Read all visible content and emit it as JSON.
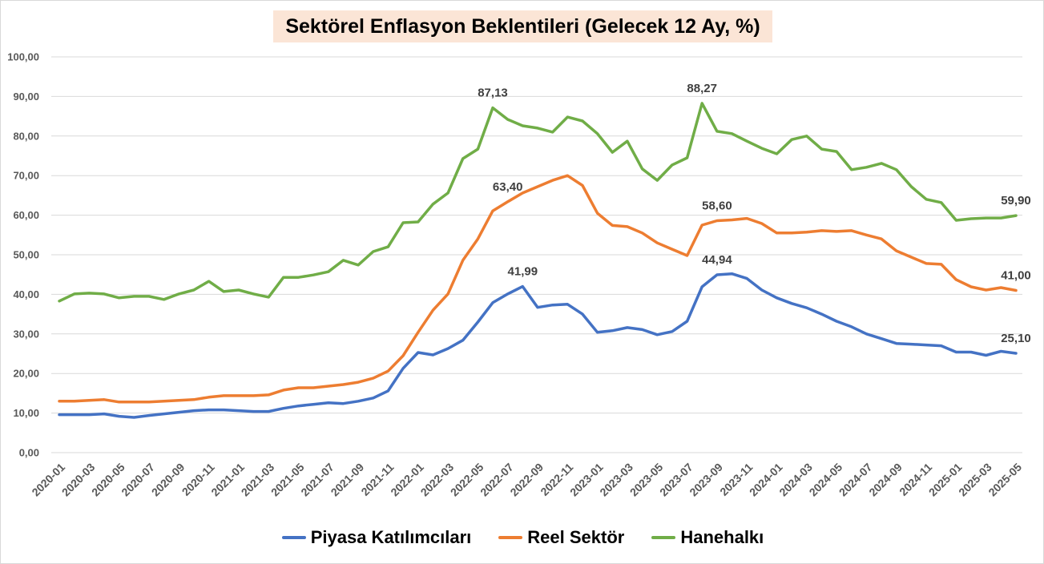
{
  "colors": {
    "title_background": "#FBE5D6"
  },
  "chart_data": {
    "type": "line",
    "title": "Sektörel Enflasyon Beklentileri (Gelecek 12 Ay, %)",
    "x": [
      "2020-01",
      "2020-02",
      "2020-03",
      "2020-04",
      "2020-05",
      "2020-06",
      "2020-07",
      "2020-08",
      "2020-09",
      "2020-10",
      "2020-11",
      "2020-12",
      "2021-01",
      "2021-02",
      "2021-03",
      "2021-04",
      "2021-05",
      "2021-06",
      "2021-07",
      "2021-08",
      "2021-09",
      "2021-10",
      "2021-11",
      "2021-12",
      "2022-01",
      "2022-02",
      "2022-03",
      "2022-04",
      "2022-05",
      "2022-06",
      "2022-07",
      "2022-08",
      "2022-09",
      "2022-10",
      "2022-11",
      "2022-12",
      "2023-01",
      "2023-02",
      "2023-03",
      "2023-04",
      "2023-05",
      "2023-06",
      "2023-07",
      "2023-08",
      "2023-09",
      "2023-10",
      "2023-11",
      "2023-12",
      "2024-01",
      "2024-02",
      "2024-03",
      "2024-04",
      "2024-05",
      "2024-06",
      "2024-07",
      "2024-08",
      "2024-09",
      "2024-10",
      "2024-11",
      "2024-12",
      "2025-01",
      "2025-02",
      "2025-03",
      "2025-04",
      "2025-05"
    ],
    "x_tick_labels": [
      "2020-01",
      "2020-03",
      "2020-05",
      "2020-07",
      "2020-09",
      "2020-11",
      "2021-01",
      "2021-03",
      "2021-05",
      "2021-07",
      "2021-09",
      "2021-11",
      "2022-01",
      "2022-03",
      "2022-05",
      "2022-07",
      "2022-09",
      "2022-11",
      "2023-01",
      "2023-03",
      "2023-05",
      "2023-07",
      "2023-09",
      "2023-11",
      "2024-01",
      "2024-03",
      "2024-05",
      "2024-07",
      "2024-09",
      "2024-11",
      "2025-01",
      "2025-03",
      "2025-05"
    ],
    "ylim": [
      0,
      100
    ],
    "y_ticks": [
      0,
      10,
      20,
      30,
      40,
      50,
      60,
      70,
      80,
      90,
      100
    ],
    "y_tick_labels": [
      "0,00",
      "10,00",
      "20,00",
      "30,00",
      "40,00",
      "50,00",
      "60,00",
      "70,00",
      "80,00",
      "90,00",
      "100,00"
    ],
    "grid": true,
    "legend": "bottom",
    "series": [
      {
        "name": "Piyasa Katılımcıları",
        "color": "#4472C4",
        "values": [
          9.6,
          9.6,
          9.6,
          9.8,
          9.2,
          8.9,
          9.4,
          9.8,
          10.2,
          10.6,
          10.8,
          10.8,
          10.6,
          10.4,
          10.4,
          11.2,
          11.8,
          12.2,
          12.6,
          12.4,
          13.0,
          13.8,
          15.6,
          21.3,
          25.3,
          24.7,
          26.3,
          28.4,
          33.0,
          37.9,
          40.1,
          41.99,
          36.7,
          37.3,
          37.5,
          35.0,
          30.4,
          30.8,
          31.6,
          31.1,
          29.8,
          30.6,
          33.2,
          41.9,
          44.94,
          45.2,
          44.0,
          41.1,
          39.1,
          37.7,
          36.6,
          35.0,
          33.2,
          31.8,
          30.0,
          28.8,
          27.6,
          27.4,
          27.2,
          27.0,
          25.4,
          25.4,
          24.6,
          25.6,
          25.1
        ],
        "labels": [
          {
            "x": "2022-08",
            "text": "41,99"
          },
          {
            "x": "2023-09",
            "text": "44,94"
          },
          {
            "x": "2025-05",
            "text": "25,10"
          }
        ]
      },
      {
        "name": "Reel Sektör",
        "color": "#ED7D31",
        "values": [
          13.0,
          13.0,
          13.2,
          13.4,
          12.8,
          12.8,
          12.8,
          13.0,
          13.2,
          13.4,
          14.0,
          14.4,
          14.4,
          14.4,
          14.6,
          15.8,
          16.4,
          16.4,
          16.8,
          17.2,
          17.8,
          18.8,
          20.6,
          24.5,
          30.4,
          36.0,
          40.1,
          48.6,
          54.0,
          61.1,
          63.4,
          65.6,
          67.2,
          68.8,
          70.0,
          67.5,
          60.5,
          57.4,
          57.1,
          55.5,
          53.0,
          51.4,
          49.8,
          57.5,
          58.6,
          58.8,
          59.2,
          57.9,
          55.5,
          55.5,
          55.7,
          56.1,
          55.9,
          56.1,
          55.0,
          54.0,
          51.0,
          49.4,
          47.8,
          47.6,
          43.7,
          41.9,
          41.1,
          41.7,
          41.0
        ],
        "labels": [
          {
            "x": "2022-07",
            "text": "63,40"
          },
          {
            "x": "2023-09",
            "text": "58,60"
          },
          {
            "x": "2025-05",
            "text": "41,00"
          }
        ]
      },
      {
        "name": "Hanehalkı",
        "color": "#70AD47",
        "values": [
          38.3,
          40.1,
          40.3,
          40.1,
          39.1,
          39.5,
          39.5,
          38.7,
          40.1,
          41.1,
          43.3,
          40.7,
          41.1,
          40.1,
          39.3,
          44.3,
          44.3,
          44.9,
          45.7,
          48.6,
          47.4,
          50.8,
          52.0,
          58.1,
          58.3,
          62.8,
          65.6,
          74.3,
          76.7,
          87.13,
          84.2,
          82.6,
          82.0,
          81.0,
          84.8,
          83.8,
          80.6,
          75.9,
          78.7,
          71.7,
          68.8,
          72.7,
          74.5,
          88.27,
          81.2,
          80.6,
          78.7,
          76.9,
          75.5,
          79.1,
          80.0,
          76.7,
          76.1,
          71.5,
          72.1,
          73.1,
          71.5,
          67.2,
          64.0,
          63.2,
          58.7,
          59.1,
          59.3,
          59.3,
          59.9
        ],
        "labels": [
          {
            "x": "2022-06",
            "text": "87,13"
          },
          {
            "x": "2023-08",
            "text": "88,27"
          },
          {
            "x": "2025-05",
            "text": "59,90"
          }
        ]
      }
    ]
  }
}
